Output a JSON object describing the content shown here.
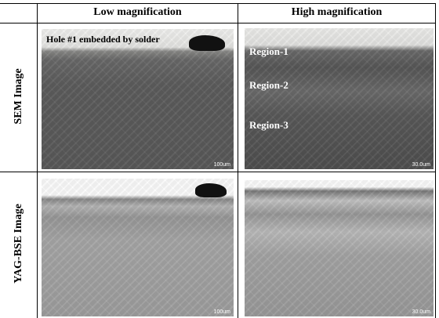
{
  "header": {
    "columns": [
      "Low magnification",
      "High magnification"
    ]
  },
  "rows": [
    {
      "label": "SEM Image",
      "panels": [
        {
          "annotations": [
            "Hole #1 embedded by solder"
          ],
          "scale": "100um"
        },
        {
          "annotations": [
            "Region-1",
            "Region-2",
            "Region-3"
          ],
          "scale": "30.0um"
        }
      ]
    },
    {
      "label": "YAG-BSE Image",
      "panels": [
        {
          "scale": "100um"
        },
        {
          "scale": "30.0um"
        }
      ]
    }
  ]
}
